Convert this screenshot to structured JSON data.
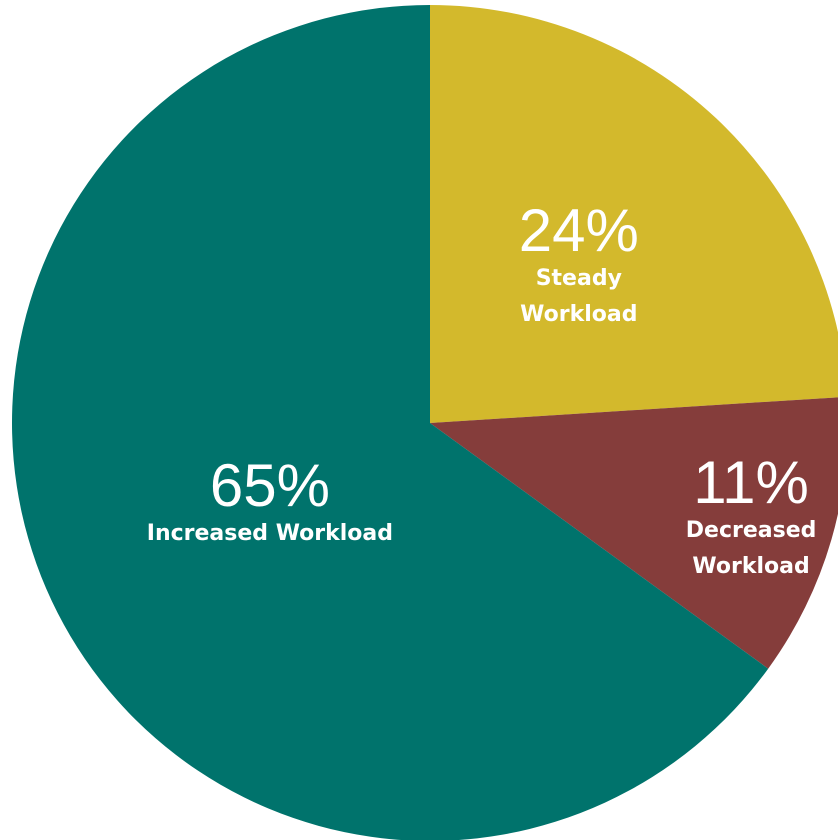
{
  "chart_data": {
    "type": "pie",
    "title": "",
    "legend": "none",
    "slices": [
      {
        "name": "Steady Workload",
        "value": 24,
        "display_value": "24%",
        "label_lines": [
          "Steady",
          "Workload"
        ],
        "color": "#d3b92c"
      },
      {
        "name": "Decreased Workload",
        "value": 11,
        "display_value": "11%",
        "label_lines": [
          "Decreased",
          "Workload"
        ],
        "color": "#853d3b"
      },
      {
        "name": "Increased Workload",
        "value": 65,
        "display_value": "65%",
        "label_lines": [
          "Increased Workload"
        ],
        "color": "#00736c"
      }
    ]
  }
}
